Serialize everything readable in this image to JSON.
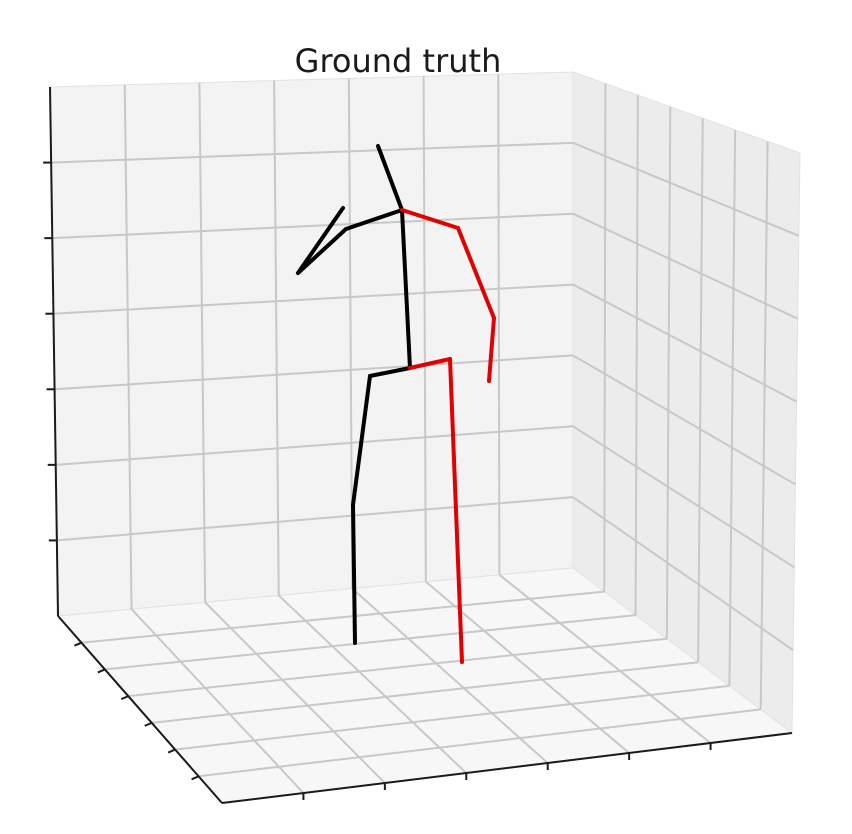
{
  "chart_data": {
    "type": "3d-line",
    "title": "Ground truth",
    "grid": true,
    "series": [
      {
        "color": "#000000",
        "segments": [
          [
            [
              378,
              146
            ],
            [
              402,
              210
            ]
          ],
          [
            [
              402,
              210
            ],
            [
              346,
              229
            ]
          ],
          [
            [
              346,
              229
            ],
            [
              298,
              273
            ]
          ],
          [
            [
              298,
              273
            ],
            [
              343,
              208
            ]
          ],
          [
            [
              402,
              210
            ],
            [
              410,
              368
            ]
          ],
          [
            [
              410,
              368
            ],
            [
              370,
              376
            ]
          ],
          [
            [
              370,
              376
            ],
            [
              353,
              505
            ]
          ],
          [
            [
              353,
              505
            ],
            [
              355,
              643
            ]
          ]
        ]
      },
      {
        "color": "#e00000",
        "segments": [
          [
            [
              402,
              210
            ],
            [
              458,
              228
            ]
          ],
          [
            [
              458,
              228
            ],
            [
              494,
              318
            ]
          ],
          [
            [
              494,
              318
            ],
            [
              489,
              381
            ]
          ],
          [
            [
              410,
              368
            ],
            [
              450,
              359
            ]
          ],
          [
            [
              450,
              359
            ],
            [
              462,
              662
            ]
          ]
        ]
      }
    ]
  }
}
